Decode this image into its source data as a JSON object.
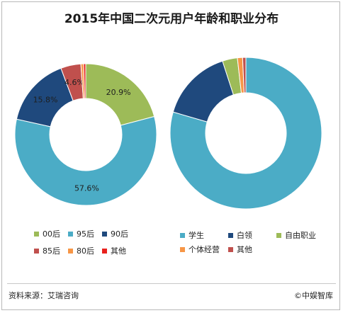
{
  "title": "2015年中国二次元用户年龄和职业分布",
  "source": "资料来源：艾瑞咨询",
  "brand": "©中娱智库",
  "chart_data": [
    {
      "type": "pie",
      "subtype": "donut",
      "categories": [
        "00后",
        "95后",
        "90后",
        "85后",
        "80后",
        "其他"
      ],
      "values": [
        20.9,
        57.6,
        15.8,
        4.6,
        0.6,
        0.5
      ],
      "labels": [
        "20.9%",
        "57.6%",
        "15.8%",
        "4.6%",
        "",
        ""
      ],
      "colors": [
        "#9dbb58",
        "#4bacc6",
        "#1f497d",
        "#c0504d",
        "#f79646",
        "#e8211d"
      ],
      "legend": "bottom"
    },
    {
      "type": "pie",
      "subtype": "donut",
      "categories": [
        "学生",
        "白领",
        "自由职业",
        "个体经营",
        "其他"
      ],
      "values": [
        79.5,
        15.5,
        3.2,
        1.1,
        0.7
      ],
      "labels": [
        "",
        "",
        "",
        "",
        ""
      ],
      "colors": [
        "#4bacc6",
        "#1f497d",
        "#9dbb58",
        "#f79646",
        "#c0504d"
      ],
      "legend": "bottom"
    }
  ]
}
